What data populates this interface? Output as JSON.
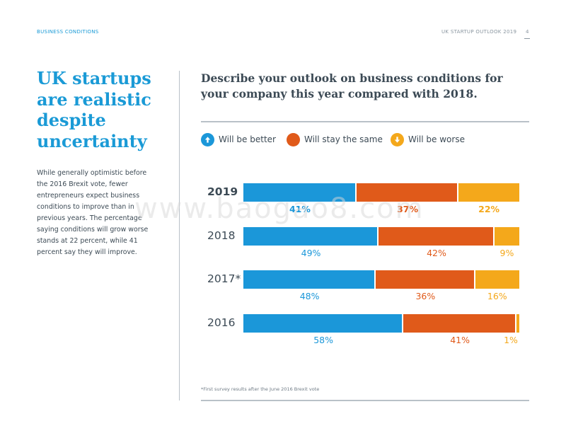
{
  "header": {
    "section": "BUSINESS CONDITIONS",
    "report": "UK STARTUP OUTLOOK 2019",
    "page": "4"
  },
  "title": "UK startups are realistic despite uncertainty",
  "description": "While generally optimistic before the 2016 Brexit vote, fewer entrepreneurs expect business conditions to improve than in previous years. The percentage saying conditions will grow worse stands at 22 percent, while 41 percent say they will improve.",
  "question": "Describe your outlook on business conditions for your company this year compared with 2018.",
  "legend": {
    "better": "Will be better",
    "same": "Will stay the same",
    "worse": "Will be worse"
  },
  "colors": {
    "better": "#1b97d9",
    "same": "#e05a1a",
    "worse": "#f4a81b",
    "accent": "#1a9ad6"
  },
  "icons": {
    "better": "arrow-up-icon",
    "same": "circle-icon",
    "worse": "arrow-down-icon"
  },
  "chart_data": {
    "type": "bar",
    "orientation": "horizontal-stacked-100",
    "categories": [
      "2019",
      "2018",
      "2017*",
      "2016"
    ],
    "series": [
      {
        "name": "Will be better",
        "values": [
          41,
          49,
          48,
          58
        ],
        "labels": [
          "41%",
          "49%",
          "48%",
          "58%"
        ]
      },
      {
        "name": "Will stay the same",
        "values": [
          37,
          42,
          36,
          41
        ],
        "labels": [
          "37%",
          "42%",
          "36%",
          "41%"
        ]
      },
      {
        "name": "Will be worse",
        "values": [
          22,
          9,
          16,
          1
        ],
        "labels": [
          "22%",
          "9%",
          "16%",
          "1%"
        ]
      }
    ],
    "xlim": [
      0,
      100
    ],
    "title": "Describe your outlook on business conditions for your company this year compared with 2018."
  },
  "footnote": "*First survey results after the June 2016 Brexit vote",
  "watermark": "www.baogao8.com"
}
